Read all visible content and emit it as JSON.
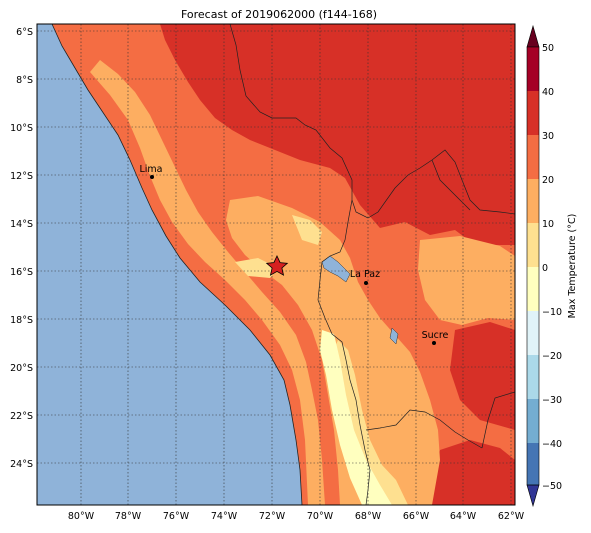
{
  "title": "Forecast of 2019062000 (f144-168)",
  "lat_labels": [
    "6°S",
    "8°S",
    "10°S",
    "12°S",
    "14°S",
    "16°S",
    "18°S",
    "20°S",
    "22°S",
    "24°S"
  ],
  "lon_labels": [
    "80°W",
    "78°W",
    "76°W",
    "74°W",
    "72°W",
    "70°W",
    "68°W",
    "66°W",
    "64°W",
    "62°W"
  ],
  "cities": [
    {
      "name": "Lima"
    },
    {
      "name": "La Paz"
    },
    {
      "name": "Sucre"
    }
  ],
  "marker": {
    "symbol": "star",
    "color": "#d62020"
  },
  "colorbar": {
    "label": "Max Temperature (°C)",
    "ticks": [
      "50",
      "40",
      "30",
      "20",
      "10",
      "0",
      "−10",
      "−20",
      "−30",
      "−40",
      "−50"
    ],
    "colors": {
      "40_50": "#a50026",
      "30_40": "#d73027",
      "20_30": "#f46d43",
      "10_20": "#fdae61",
      "0_10": "#fee090",
      "neg10_0": "#ffffbf",
      "neg20_neg10": "#e0f3f8",
      "neg30_neg20": "#abd9e9",
      "neg40_neg30": "#74add1",
      "neg50_neg40": "#4575b4",
      "below": "#313695"
    }
  },
  "colors": {
    "ocean": "#8fb3d9",
    "lake": "#8fb3d9"
  }
}
